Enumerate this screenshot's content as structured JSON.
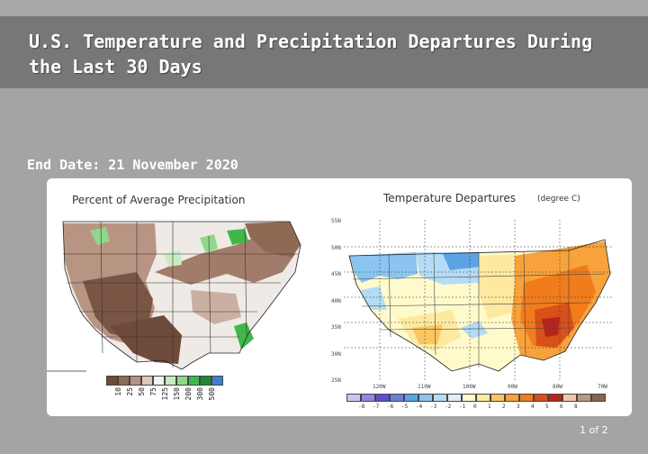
{
  "slide": {
    "title": "U.S. Temperature and Precipitation Departures During the Last 30 Days",
    "end_date": "End Date:  21 November 2020",
    "page": "1 of 2"
  },
  "left_map": {
    "caption": "Percent of Average Precipitation",
    "legend": [
      "10",
      "25",
      "50",
      "75",
      "125",
      "150",
      "200",
      "300",
      "500"
    ],
    "legend_colors": [
      "#6d4a3a",
      "#8e6a55",
      "#b59382",
      "#dcc8bd",
      "#f3f3f3",
      "#c8ecc0",
      "#8fd88a",
      "#3fb84a",
      "#1f8a2e",
      "#3d7fcf"
    ]
  },
  "right_map": {
    "caption": "Temperature Departures",
    "units": "(degree C)",
    "lat_ticks": [
      "55N",
      "50N",
      "45N",
      "40N",
      "35N",
      "30N",
      "25N"
    ],
    "lon_ticks": [
      "120W",
      "110W",
      "100W",
      "90W",
      "80W",
      "70W"
    ],
    "legend": [
      "-8",
      "-7",
      "-6",
      "-5",
      "-4",
      "-3",
      "-2",
      "-1",
      "0",
      "1",
      "2",
      "3",
      "4",
      "5",
      "6",
      "8"
    ],
    "legend_colors": [
      "#c9c7ef",
      "#8f87e0",
      "#5b4ed0",
      "#6b7fd9",
      "#5aa3e5",
      "#8cc4f0",
      "#b5dcf6",
      "#dff0fb",
      "#fffacb",
      "#fde9a0",
      "#fcc55f",
      "#f8a23c",
      "#f07c1c",
      "#d8501a",
      "#b8241a",
      "#f4c6a8",
      "#b89985",
      "#8a6452"
    ]
  },
  "colors": {
    "background": "#a4a4a4",
    "title_bar": "#777777"
  }
}
